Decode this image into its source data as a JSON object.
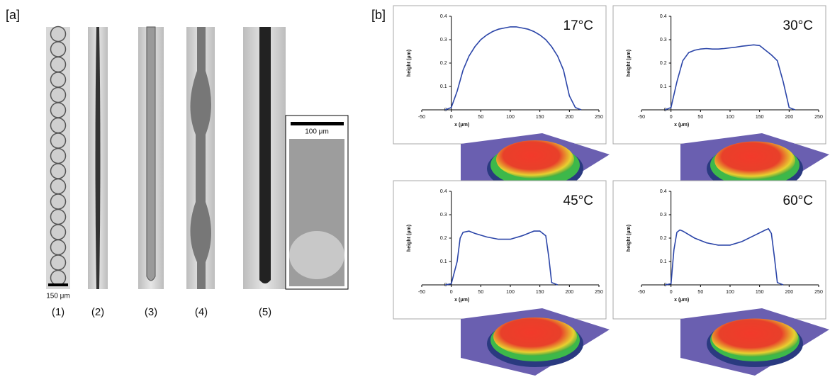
{
  "panel_a": {
    "label": "[a]",
    "scale_bar": "150 μm",
    "inset_scale_bar": "100 μm",
    "strips": [
      "(1)",
      "(2)",
      "(3)",
      "(4)",
      "(5)"
    ]
  },
  "panel_b": {
    "label": "[b]"
  },
  "chart_data": [
    {
      "type": "line",
      "title": "17°C",
      "xlabel": "x (μm)",
      "ylabel": "height (μm)",
      "x": [
        -10,
        0,
        10,
        20,
        30,
        40,
        50,
        60,
        70,
        80,
        90,
        100,
        110,
        120,
        130,
        140,
        150,
        160,
        170,
        180,
        190,
        200,
        210,
        220
      ],
      "series": [
        {
          "color": "#2b45a8",
          "values": [
            0,
            0.01,
            0.08,
            0.17,
            0.23,
            0.27,
            0.3,
            0.32,
            0.335,
            0.345,
            0.35,
            0.355,
            0.355,
            0.35,
            0.345,
            0.335,
            0.32,
            0.3,
            0.27,
            0.23,
            0.17,
            0.06,
            0.01,
            0
          ]
        }
      ],
      "xlim": [
        -50,
        250
      ],
      "xticks": [
        -50,
        0,
        50,
        100,
        150,
        200,
        250
      ],
      "ylim": [
        0,
        0.4
      ],
      "yticks": [
        0,
        0.1,
        0.2,
        0.3,
        0.4
      ]
    },
    {
      "type": "line",
      "title": "30°C",
      "xlabel": "x (μm)",
      "ylabel": "height (μm)",
      "x": [
        -10,
        0,
        10,
        20,
        30,
        40,
        50,
        60,
        70,
        80,
        90,
        100,
        110,
        120,
        130,
        140,
        150,
        160,
        170,
        180,
        190,
        200,
        210
      ],
      "series": [
        {
          "color": "#2b45a8",
          "values": [
            0,
            0.01,
            0.12,
            0.21,
            0.245,
            0.255,
            0.26,
            0.262,
            0.26,
            0.26,
            0.262,
            0.265,
            0.268,
            0.272,
            0.275,
            0.278,
            0.275,
            0.255,
            0.235,
            0.21,
            0.12,
            0.01,
            0
          ]
        }
      ],
      "xlim": [
        -50,
        250
      ],
      "xticks": [
        -50,
        0,
        50,
        100,
        150,
        200,
        250
      ],
      "ylim": [
        0,
        0.4
      ],
      "yticks": [
        0,
        0.1,
        0.2,
        0.3,
        0.4
      ]
    },
    {
      "type": "line",
      "title": "45°C",
      "xlabel": "x (μm)",
      "ylabel": "height (μm)",
      "x": [
        -10,
        0,
        10,
        15,
        20,
        30,
        40,
        60,
        80,
        100,
        120,
        140,
        150,
        160,
        165,
        170,
        180
      ],
      "series": [
        {
          "color": "#2b45a8",
          "values": [
            0,
            0.005,
            0.1,
            0.2,
            0.225,
            0.23,
            0.22,
            0.205,
            0.195,
            0.195,
            0.21,
            0.23,
            0.23,
            0.21,
            0.12,
            0.01,
            0
          ]
        }
      ],
      "xlim": [
        -50,
        250
      ],
      "xticks": [
        -50,
        0,
        50,
        100,
        150,
        200,
        250
      ],
      "ylim": [
        0,
        0.4
      ],
      "yticks": [
        0,
        0.1,
        0.2,
        0.3,
        0.4
      ]
    },
    {
      "type": "line",
      "title": "60°C",
      "xlabel": "x (μm)",
      "ylabel": "height (μm)",
      "x": [
        -10,
        0,
        5,
        10,
        15,
        20,
        40,
        60,
        80,
        100,
        120,
        140,
        160,
        165,
        170,
        175,
        180,
        190
      ],
      "series": [
        {
          "color": "#2b45a8",
          "values": [
            0,
            0.005,
            0.15,
            0.225,
            0.235,
            0.23,
            0.2,
            0.18,
            0.17,
            0.17,
            0.185,
            0.21,
            0.235,
            0.24,
            0.22,
            0.12,
            0.01,
            0
          ]
        }
      ],
      "xlim": [
        -50,
        250
      ],
      "xticks": [
        -50,
        0,
        50,
        100,
        150,
        200,
        250
      ],
      "ylim": [
        0,
        0.4
      ],
      "yticks": [
        0,
        0.1,
        0.2,
        0.3,
        0.4
      ]
    }
  ]
}
